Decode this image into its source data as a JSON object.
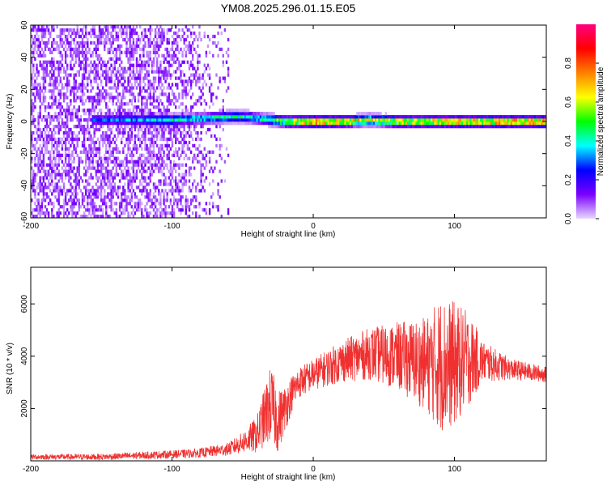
{
  "title": "YM08.2025.296.01.15.E05",
  "chart_data": [
    {
      "type": "heatmap",
      "xlabel": "Height of straight line (km)",
      "ylabel": "Frequency (Hz)",
      "xlim": [
        -200,
        165
      ],
      "ylim": [
        -60,
        60
      ],
      "xticks": [
        "-200",
        "-100",
        "0",
        "100"
      ],
      "yticks": [
        "-60",
        "-40",
        "-20",
        "0",
        "20",
        "40",
        "60"
      ],
      "colorbar": {
        "label": "Normalized spectral amplitude",
        "range": [
          0,
          1
        ],
        "ticks": [
          "0.0",
          "0.2",
          "0.4",
          "0.6",
          "0.8"
        ],
        "colors": [
          "#e8d8ff",
          "#7a00ff",
          "#0000ff",
          "#00ffff",
          "#00ff00",
          "#ffff00",
          "#ff8000",
          "#ff0000",
          "#ff0080"
        ]
      },
      "ridge": {
        "description_points_x": [
          -160,
          -120,
          -100,
          -80,
          -60,
          -50,
          -40,
          -30,
          -20,
          0,
          20,
          40,
          60,
          80,
          100,
          120,
          140,
          165
        ],
        "frequency_hz": [
          1,
          1,
          1,
          2,
          3,
          3,
          2,
          1,
          0,
          0,
          0,
          1,
          0,
          0,
          0,
          0,
          0,
          0
        ],
        "peak_amplitude": [
          0.3,
          0.45,
          0.5,
          0.5,
          0.55,
          0.5,
          0.5,
          0.6,
          0.7,
          0.95,
          0.85,
          0.75,
          0.8,
          0.85,
          0.9,
          0.9,
          0.95,
          0.95
        ]
      }
    },
    {
      "type": "line",
      "xlabel": "Height of straight line (km)",
      "ylabel": "SNR (10 * v/v)",
      "xlim": [
        -200,
        165
      ],
      "ylim": [
        0,
        7400
      ],
      "xticks": [
        "-200",
        "-100",
        "0",
        "100"
      ],
      "yticks": [
        "2000",
        "4000",
        "6000"
      ],
      "color": "#f03030",
      "envelope": {
        "x": [
          -200,
          -150,
          -100,
          -80,
          -60,
          -50,
          -40,
          -35,
          -30,
          -25,
          -20,
          -15,
          -10,
          0,
          20,
          40,
          60,
          80,
          90,
          100,
          110,
          120,
          140,
          165
        ],
        "mean": [
          150,
          150,
          250,
          300,
          450,
          700,
          1000,
          1600,
          2200,
          1500,
          2000,
          2600,
          3000,
          3300,
          3800,
          4100,
          4000,
          3700,
          3700,
          3700,
          3900,
          3800,
          3500,
          3300
        ],
        "spread": [
          100,
          120,
          150,
          180,
          250,
          400,
          700,
          1100,
          1500,
          1200,
          900,
          700,
          600,
          600,
          800,
          1000,
          1300,
          1800,
          2600,
          2400,
          1800,
          800,
          400,
          300
        ]
      }
    }
  ]
}
